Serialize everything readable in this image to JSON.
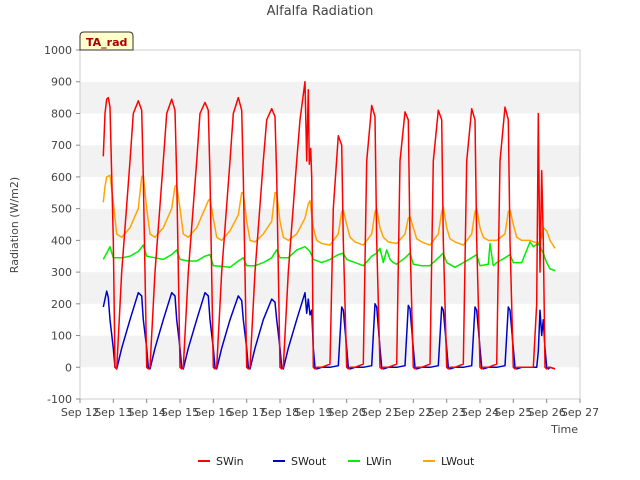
{
  "chart_data": {
    "type": "line",
    "title": "Alfalfa Radiation",
    "xlabel": "Time",
    "ylabel": "Radiation (W/m2)",
    "badge": "TA_rad",
    "ylim": [
      -100,
      1000
    ],
    "yticks": [
      -100,
      0,
      100,
      200,
      300,
      400,
      500,
      600,
      700,
      800,
      900,
      1000
    ],
    "xlim": [
      12,
      27
    ],
    "xticks": [
      12,
      13,
      14,
      15,
      16,
      17,
      18,
      19,
      20,
      21,
      22,
      23,
      24,
      25,
      26,
      27
    ],
    "xtick_labels": [
      "Sep 12",
      "Sep 13",
      "Sep 14",
      "Sep 15",
      "Sep 16",
      "Sep 17",
      "Sep 18",
      "Sep 19",
      "Sep 20",
      "Sep 21",
      "Sep 22",
      "Sep 23",
      "Sep 24",
      "Sep 25",
      "Sep 26",
      "Sep 27"
    ],
    "grid": "horizontal bands",
    "legend_position": "bottom",
    "x_units": "day of September",
    "series": [
      {
        "name": "SWin",
        "color": "#ff0000",
        "x": [
          12.7,
          12.75,
          12.8,
          12.85,
          12.9,
          13.0,
          13.05,
          13.1,
          13.25,
          13.5,
          13.6,
          13.75,
          13.85,
          13.9,
          14.0,
          14.05,
          14.1,
          14.25,
          14.5,
          14.6,
          14.75,
          14.85,
          14.9,
          15.0,
          15.05,
          15.1,
          15.25,
          15.5,
          15.6,
          15.75,
          15.85,
          15.9,
          16.0,
          16.05,
          16.1,
          16.25,
          16.5,
          16.6,
          16.75,
          16.85,
          16.9,
          17.0,
          17.05,
          17.1,
          17.25,
          17.5,
          17.6,
          17.75,
          17.85,
          17.9,
          18.0,
          18.05,
          18.1,
          18.25,
          18.5,
          18.6,
          18.75,
          18.8,
          18.85,
          18.88,
          18.92,
          18.95,
          19.0,
          19.05,
          19.1,
          19.25,
          19.5,
          19.6,
          19.75,
          19.85,
          19.9,
          20.0,
          20.05,
          20.1,
          20.25,
          20.5,
          20.6,
          20.75,
          20.85,
          20.9,
          21.0,
          21.05,
          21.1,
          21.25,
          21.5,
          21.6,
          21.75,
          21.85,
          21.9,
          22.0,
          22.05,
          22.1,
          22.25,
          22.5,
          22.6,
          22.75,
          22.85,
          22.9,
          23.0,
          23.05,
          23.1,
          23.25,
          23.5,
          23.6,
          23.75,
          23.85,
          23.9,
          24.0,
          24.05,
          24.1,
          24.25,
          24.5,
          24.6,
          24.75,
          24.85,
          24.9,
          25.0,
          25.05,
          25.1,
          25.25,
          25.5,
          25.6,
          25.7,
          25.75,
          25.8,
          25.85,
          25.9,
          25.95,
          26.0,
          26.05,
          26.1,
          26.25
        ],
        "y": [
          665,
          800,
          845,
          850,
          820,
          400,
          0,
          -5,
          300,
          650,
          800,
          840,
          810,
          600,
          0,
          -5,
          0,
          300,
          650,
          800,
          845,
          810,
          600,
          0,
          -5,
          0,
          300,
          650,
          800,
          835,
          810,
          600,
          0,
          -5,
          0,
          300,
          650,
          800,
          850,
          810,
          600,
          0,
          -5,
          0,
          300,
          650,
          780,
          815,
          790,
          600,
          0,
          -5,
          0,
          300,
          650,
          780,
          900,
          650,
          875,
          640,
          690,
          600,
          0,
          -5,
          0,
          0,
          10,
          500,
          730,
          700,
          400,
          0,
          -5,
          0,
          0,
          10,
          650,
          825,
          790,
          400,
          0,
          -5,
          0,
          0,
          10,
          650,
          805,
          780,
          400,
          0,
          -5,
          0,
          0,
          10,
          650,
          810,
          780,
          400,
          0,
          -5,
          0,
          0,
          10,
          650,
          815,
          780,
          400,
          0,
          -5,
          0,
          0,
          10,
          650,
          820,
          780,
          400,
          0,
          -5,
          0,
          0,
          0,
          0,
          200,
          800,
          300,
          620,
          400,
          0,
          -5,
          0,
          0,
          -5
        ]
      },
      {
        "name": "SWout",
        "color": "#0000cc",
        "x": [
          12.7,
          12.8,
          12.85,
          12.9,
          13.0,
          13.05,
          13.1,
          13.25,
          13.5,
          13.75,
          13.85,
          13.9,
          14.0,
          14.05,
          14.1,
          14.25,
          14.5,
          14.75,
          14.85,
          14.9,
          15.0,
          15.05,
          15.1,
          15.25,
          15.5,
          15.75,
          15.85,
          15.9,
          16.0,
          16.05,
          16.1,
          16.25,
          16.5,
          16.75,
          16.85,
          16.9,
          17.0,
          17.05,
          17.1,
          17.25,
          17.5,
          17.75,
          17.85,
          17.9,
          18.0,
          18.05,
          18.1,
          18.25,
          18.5,
          18.75,
          18.8,
          18.85,
          18.9,
          18.95,
          19.0,
          19.05,
          19.1,
          19.25,
          19.5,
          19.75,
          19.85,
          19.9,
          20.0,
          20.05,
          20.1,
          20.25,
          20.5,
          20.75,
          20.85,
          20.9,
          21.0,
          21.05,
          21.1,
          21.25,
          21.5,
          21.75,
          21.85,
          21.9,
          22.0,
          22.05,
          22.1,
          22.25,
          22.5,
          22.75,
          22.85,
          22.9,
          23.0,
          23.05,
          23.1,
          23.25,
          23.5,
          23.75,
          23.85,
          23.9,
          24.0,
          24.05,
          24.1,
          24.25,
          24.5,
          24.75,
          24.85,
          24.9,
          25.0,
          25.05,
          25.1,
          25.25,
          25.5,
          25.7,
          25.75,
          25.8,
          25.85,
          25.9,
          25.95,
          26.0,
          26.05,
          26.1,
          26.25
        ],
        "y": [
          190,
          240,
          220,
          150,
          60,
          0,
          -5,
          60,
          150,
          235,
          225,
          150,
          60,
          0,
          -5,
          60,
          150,
          235,
          225,
          150,
          60,
          0,
          -5,
          60,
          150,
          235,
          225,
          150,
          60,
          0,
          -5,
          60,
          150,
          225,
          210,
          150,
          60,
          0,
          -5,
          60,
          150,
          215,
          205,
          150,
          60,
          0,
          -5,
          60,
          150,
          235,
          170,
          215,
          165,
          180,
          60,
          0,
          -5,
          0,
          0,
          5,
          190,
          180,
          60,
          0,
          -5,
          0,
          0,
          5,
          200,
          190,
          60,
          0,
          -5,
          0,
          0,
          5,
          195,
          185,
          60,
          0,
          -5,
          0,
          0,
          5,
          190,
          180,
          60,
          0,
          -5,
          0,
          0,
          5,
          190,
          180,
          60,
          0,
          -5,
          0,
          0,
          5,
          190,
          180,
          60,
          0,
          -5,
          0,
          0,
          0,
          50,
          180,
          100,
          150,
          60,
          0,
          -5,
          0,
          -5
        ]
      },
      {
        "name": "LWin",
        "color": "#00ee00",
        "x": [
          12.7,
          12.8,
          12.9,
          13.0,
          13.25,
          13.5,
          13.75,
          13.9,
          14.0,
          14.25,
          14.5,
          14.75,
          14.9,
          15.0,
          15.25,
          15.5,
          15.75,
          15.9,
          16.0,
          16.25,
          16.5,
          16.75,
          16.9,
          17.0,
          17.25,
          17.5,
          17.75,
          17.9,
          18.0,
          18.25,
          18.5,
          18.75,
          18.9,
          19.0,
          19.25,
          19.5,
          19.75,
          19.9,
          20.0,
          20.25,
          20.5,
          20.75,
          20.9,
          21.0,
          21.1,
          21.2,
          21.3,
          21.4,
          21.5,
          21.75,
          21.9,
          22.0,
          22.25,
          22.5,
          22.75,
          22.9,
          23.0,
          23.25,
          23.5,
          23.75,
          23.9,
          24.0,
          24.25,
          24.3,
          24.4,
          24.5,
          24.75,
          24.9,
          25.0,
          25.25,
          25.5,
          25.6,
          25.75,
          25.9,
          26.0,
          26.1,
          26.25
        ],
        "y": [
          340,
          360,
          380,
          345,
          345,
          350,
          365,
          385,
          350,
          345,
          340,
          355,
          370,
          340,
          335,
          335,
          350,
          355,
          320,
          318,
          315,
          335,
          345,
          320,
          320,
          330,
          345,
          370,
          345,
          345,
          370,
          380,
          365,
          340,
          330,
          340,
          355,
          360,
          340,
          330,
          320,
          350,
          360,
          375,
          330,
          370,
          340,
          330,
          325,
          345,
          360,
          325,
          320,
          320,
          345,
          360,
          330,
          315,
          330,
          345,
          355,
          320,
          325,
          390,
          320,
          330,
          345,
          355,
          330,
          330,
          395,
          380,
          390,
          360,
          330,
          310,
          305
        ]
      },
      {
        "name": "LWout",
        "color": "#ffa500",
        "x": [
          12.7,
          12.75,
          12.8,
          12.9,
          13.0,
          13.1,
          13.25,
          13.5,
          13.75,
          13.85,
          13.9,
          14.0,
          14.1,
          14.25,
          14.5,
          14.75,
          14.85,
          14.9,
          15.0,
          15.1,
          15.25,
          15.5,
          15.75,
          15.85,
          15.9,
          16.0,
          16.1,
          16.25,
          16.5,
          16.75,
          16.85,
          16.9,
          17.0,
          17.1,
          17.25,
          17.5,
          17.75,
          17.85,
          17.9,
          18.0,
          18.1,
          18.25,
          18.5,
          18.75,
          18.85,
          18.9,
          19.0,
          19.1,
          19.25,
          19.5,
          19.75,
          19.85,
          19.9,
          20.0,
          20.1,
          20.25,
          20.5,
          20.75,
          20.85,
          20.9,
          21.0,
          21.1,
          21.25,
          21.5,
          21.75,
          21.85,
          21.9,
          22.0,
          22.1,
          22.25,
          22.5,
          22.75,
          22.85,
          22.9,
          23.0,
          23.1,
          23.25,
          23.5,
          23.75,
          23.85,
          23.9,
          24.0,
          24.1,
          24.25,
          24.5,
          24.75,
          24.85,
          24.9,
          25.0,
          25.1,
          25.25,
          25.5,
          25.75,
          25.85,
          25.9,
          26.0,
          26.1,
          26.25
        ],
        "y": [
          520,
          570,
          600,
          605,
          520,
          420,
          410,
          440,
          500,
          600,
          605,
          500,
          420,
          410,
          440,
          500,
          570,
          575,
          500,
          420,
          410,
          440,
          500,
          525,
          530,
          470,
          410,
          400,
          430,
          480,
          550,
          550,
          460,
          400,
          395,
          420,
          460,
          550,
          550,
          460,
          410,
          400,
          420,
          470,
          515,
          525,
          440,
          400,
          390,
          385,
          420,
          490,
          495,
          450,
          410,
          395,
          385,
          420,
          490,
          500,
          440,
          410,
          395,
          390,
          420,
          470,
          475,
          440,
          405,
          395,
          385,
          420,
          490,
          505,
          440,
          405,
          395,
          385,
          420,
          490,
          500,
          440,
          410,
          400,
          400,
          420,
          490,
          495,
          450,
          410,
          400,
          400,
          390,
          410,
          440,
          430,
          400,
          375
        ]
      }
    ]
  }
}
